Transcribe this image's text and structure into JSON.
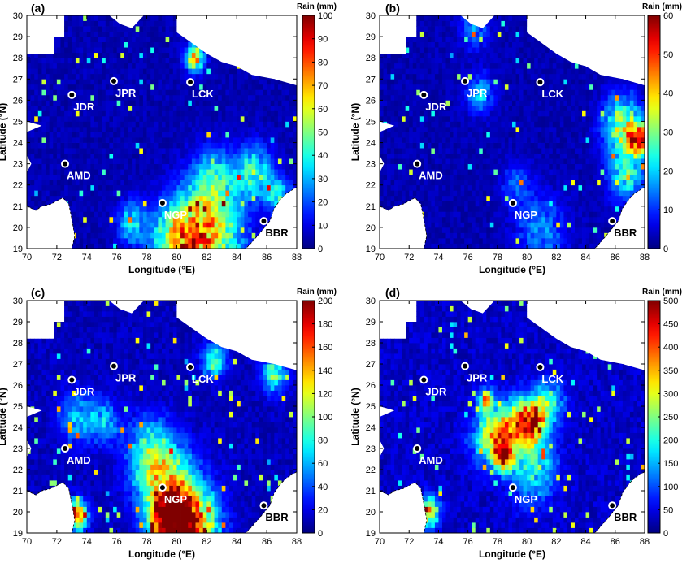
{
  "figure": {
    "x_ticks": [
      "70",
      "72",
      "74",
      "76",
      "78",
      "80",
      "82",
      "84",
      "86",
      "88"
    ],
    "y_ticks": [
      "19",
      "20",
      "21",
      "22",
      "23",
      "24",
      "25",
      "26",
      "27",
      "28",
      "29",
      "30"
    ],
    "xlabel": "Longitude (°E)",
    "ylabel": "Latitude (°N)",
    "colorbar_label": "Rain (mm)",
    "x_range": [
      70,
      88
    ],
    "y_range": [
      19,
      30
    ],
    "colormap": "jet",
    "ocean_color": "#ffffff",
    "masked_color": "#ffffff"
  },
  "stations": [
    {
      "name": "JDR",
      "lon": 73.0,
      "lat": 26.25
    },
    {
      "name": "JPR",
      "lon": 75.8,
      "lat": 26.9
    },
    {
      "name": "LCK",
      "lon": 80.9,
      "lat": 26.85
    },
    {
      "name": "AMD",
      "lon": 72.55,
      "lat": 23.0
    },
    {
      "name": "NGP",
      "lon": 79.05,
      "lat": 21.15
    },
    {
      "name": "BBR",
      "lon": 85.8,
      "lat": 20.3
    }
  ],
  "panels": [
    {
      "label": "(a)",
      "cbar_max": 100,
      "cbar_ticks": [
        "0",
        "10",
        "20",
        "30",
        "40",
        "50",
        "60",
        "70",
        "80",
        "90",
        "100"
      ],
      "background_value": 5,
      "hotspots": [
        {
          "lon": 82.0,
          "lat": 19.6,
          "value": 70,
          "radius": 2.2
        },
        {
          "lon": 80.0,
          "lat": 19.4,
          "value": 55,
          "radius": 1.6
        },
        {
          "lon": 85.2,
          "lat": 22.6,
          "value": 45,
          "radius": 1.2
        },
        {
          "lon": 81.2,
          "lat": 28.0,
          "value": 75,
          "radius": 0.6
        },
        {
          "lon": 82.5,
          "lat": 22.2,
          "value": 35,
          "radius": 1.5
        },
        {
          "lon": 86.8,
          "lat": 21.5,
          "value": 40,
          "radius": 0.8
        },
        {
          "lon": 77.0,
          "lat": 20.2,
          "value": 35,
          "radius": 1.0
        }
      ]
    },
    {
      "label": "(b)",
      "cbar_max": 60,
      "cbar_ticks": [
        "0",
        "10",
        "20",
        "30",
        "40",
        "50",
        "60"
      ],
      "background_value": 3,
      "hotspots": [
        {
          "lon": 87.6,
          "lat": 24.2,
          "value": 55,
          "radius": 0.7
        },
        {
          "lon": 86.5,
          "lat": 24.8,
          "value": 35,
          "radius": 1.3
        },
        {
          "lon": 86.8,
          "lat": 22.5,
          "value": 25,
          "radius": 1.2
        },
        {
          "lon": 81.0,
          "lat": 19.8,
          "value": 15,
          "radius": 1.6
        },
        {
          "lon": 76.8,
          "lat": 26.3,
          "value": 18,
          "radius": 0.9
        },
        {
          "lon": 79.3,
          "lat": 22.0,
          "value": 12,
          "radius": 1.0
        },
        {
          "lon": 76.5,
          "lat": 29.5,
          "value": 14,
          "radius": 1.0
        }
      ]
    },
    {
      "label": "(c)",
      "cbar_max": 200,
      "cbar_ticks": [
        "0",
        "20",
        "40",
        "60",
        "80",
        "100",
        "120",
        "140",
        "160",
        "180",
        "200"
      ],
      "background_value": 12,
      "hotspots": [
        {
          "lon": 80.8,
          "lat": 19.4,
          "value": 190,
          "radius": 1.8
        },
        {
          "lon": 79.5,
          "lat": 19.6,
          "value": 175,
          "radius": 1.2
        },
        {
          "lon": 73.3,
          "lat": 19.8,
          "value": 180,
          "radius": 0.7
        },
        {
          "lon": 79.2,
          "lat": 21.4,
          "value": 110,
          "radius": 1.8
        },
        {
          "lon": 78.2,
          "lat": 23.0,
          "value": 70,
          "radius": 1.5
        },
        {
          "lon": 73.4,
          "lat": 24.5,
          "value": 60,
          "radius": 1.2
        },
        {
          "lon": 82.5,
          "lat": 27.2,
          "value": 90,
          "radius": 0.8
        },
        {
          "lon": 86.5,
          "lat": 26.5,
          "value": 100,
          "radius": 0.8
        },
        {
          "lon": 75.2,
          "lat": 24.3,
          "value": 55,
          "radius": 1.0
        }
      ]
    },
    {
      "label": "(d)",
      "cbar_max": 500,
      "cbar_ticks": [
        "0",
        "50",
        "100",
        "150",
        "200",
        "250",
        "300",
        "350",
        "400",
        "450",
        "500"
      ],
      "background_value": 35,
      "hotspots": [
        {
          "lon": 80.3,
          "lat": 24.3,
          "value": 440,
          "radius": 1.0
        },
        {
          "lon": 78.9,
          "lat": 23.9,
          "value": 300,
          "radius": 1.3
        },
        {
          "lon": 77.5,
          "lat": 23.5,
          "value": 260,
          "radius": 1.2
        },
        {
          "lon": 78.4,
          "lat": 22.5,
          "value": 380,
          "radius": 0.6
        },
        {
          "lon": 77.2,
          "lat": 25.3,
          "value": 350,
          "radius": 0.5
        },
        {
          "lon": 73.3,
          "lat": 20.0,
          "value": 380,
          "radius": 0.7
        },
        {
          "lon": 80.5,
          "lat": 22.0,
          "value": 180,
          "radius": 1.5
        },
        {
          "lon": 81.5,
          "lat": 25.2,
          "value": 200,
          "radius": 1.0
        }
      ]
    }
  ]
}
